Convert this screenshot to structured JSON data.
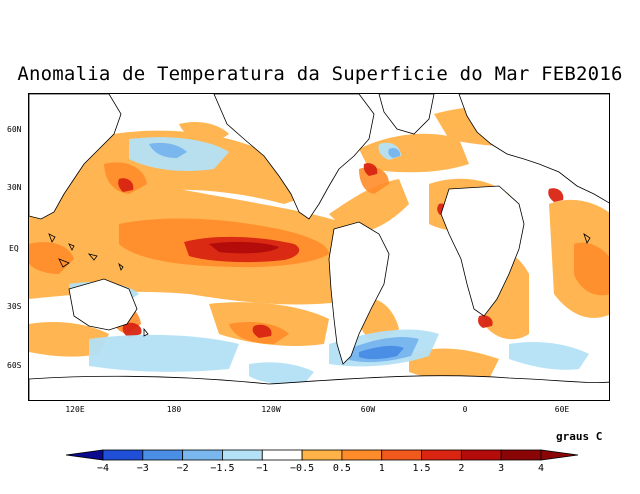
{
  "title": "Anomalia de Temperatura da Superficie do Mar FEB2016",
  "units_label": "graus C",
  "latitude_labels": [
    "60N",
    "30N",
    "EQ",
    "30S",
    "60S"
  ],
  "longitude_labels": [
    "120E",
    "180",
    "120W",
    "60W",
    "0",
    "60E"
  ],
  "colorbar": {
    "ticks": [
      "-4",
      "-3",
      "-2",
      "-1.5",
      "-1",
      "-0.5",
      "0.5",
      "1",
      "1.5",
      "2",
      "3",
      "4"
    ],
    "colors": [
      "#0a0a8c",
      "#1f4fd6",
      "#4b8ee6",
      "#7bb7ef",
      "#b4e1f6",
      "#ffffff",
      "#ffb248",
      "#ff8c2a",
      "#f25a1d",
      "#d92512",
      "#b40b0b",
      "#8a0606"
    ]
  }
}
